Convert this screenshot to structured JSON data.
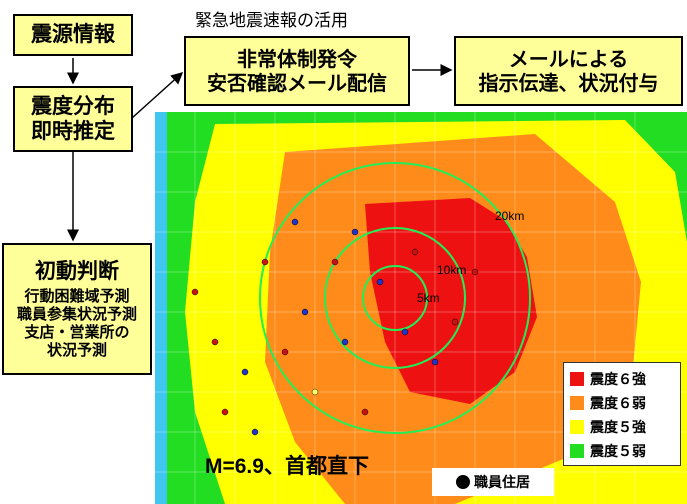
{
  "title": "緊急地震速報の活用",
  "boxes": {
    "source": "震源情報",
    "estimate": [
      "震度分布",
      "即時推定"
    ],
    "order": [
      "非常体制発令",
      "安否確認メール配信"
    ],
    "mail": [
      "メールによる",
      "指示伝達、状況付与"
    ],
    "initial_title": "初動判断",
    "initial_lines": [
      "行動困難域予測",
      "職員参集状況予測",
      "支店・営業所の",
      "状況予測"
    ]
  },
  "map": {
    "magnitude": "M=6.9、首都直下",
    "rings": [
      "5km",
      "10km",
      "20km"
    ],
    "staff_legend": "職員住居"
  },
  "legend": [
    {
      "label": "震度６強",
      "color": "#ee1111"
    },
    {
      "label": "震度６弱",
      "color": "#ff8c1a"
    },
    {
      "label": "震度５強",
      "color": "#ffff00"
    },
    {
      "label": "震度５弱",
      "color": "#22dd22"
    }
  ]
}
